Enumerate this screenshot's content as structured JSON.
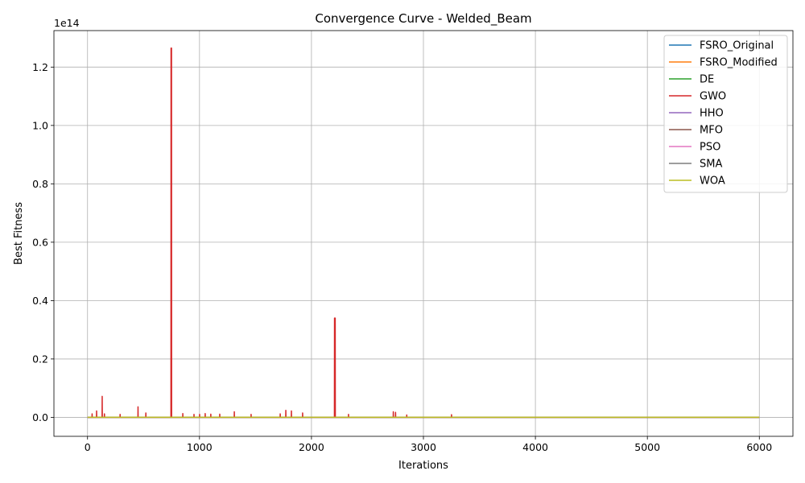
{
  "chart_data": {
    "type": "line",
    "title": "Convergence Curve - Welded_Beam",
    "xlabel": "Iterations",
    "ylabel": "Best Fitness",
    "y_multiplier_label": "1e14",
    "xlim": [
      -300,
      6300
    ],
    "ylim": [
      -0.065,
      1.325
    ],
    "x_ticks": [
      0,
      1000,
      2000,
      3000,
      4000,
      5000,
      6000
    ],
    "x_tick_labels": [
      "0",
      "1000",
      "2000",
      "3000",
      "4000",
      "5000",
      "6000"
    ],
    "y_ticks": [
      0.0,
      0.2,
      0.4,
      0.6,
      0.8,
      1.0,
      1.2
    ],
    "y_tick_labels": [
      "0.0",
      "0.2",
      "0.4",
      "0.6",
      "0.8",
      "1.0",
      "1.2"
    ],
    "grid": true,
    "legend_position": "top-right",
    "series": [
      {
        "name": "FSRO_Original",
        "color": "#1f77b4",
        "x": [
          0,
          6000
        ],
        "y": [
          0.0,
          0.0
        ]
      },
      {
        "name": "FSRO_Modified",
        "color": "#ff7f0e",
        "x": [
          0,
          6000
        ],
        "y": [
          0.0,
          0.0
        ]
      },
      {
        "name": "DE",
        "color": "#2ca02c",
        "x": [
          0,
          6000
        ],
        "y": [
          0.0,
          0.0
        ]
      },
      {
        "name": "GWO",
        "color": "#d62728",
        "x": [
          0,
          40,
          41,
          42,
          80,
          81,
          82,
          130,
          131,
          132,
          150,
          151,
          152,
          290,
          291,
          292,
          450,
          451,
          452,
          520,
          521,
          522,
          740,
          745,
          746,
          750,
          751,
          752,
          850,
          851,
          852,
          950,
          951,
          952,
          1000,
          1001,
          1002,
          1050,
          1051,
          1052,
          1100,
          1101,
          1102,
          1180,
          1181,
          1182,
          1310,
          1311,
          1312,
          1460,
          1461,
          1462,
          1720,
          1721,
          1722,
          1770,
          1771,
          1772,
          1820,
          1821,
          1822,
          1920,
          1921,
          1922,
          2200,
          2205,
          2206,
          2212,
          2213,
          2214,
          2330,
          2331,
          2332,
          2730,
          2731,
          2732,
          2750,
          2751,
          2752,
          2850,
          2851,
          2852,
          3250,
          3251,
          3252,
          6000
        ],
        "y": [
          0.0,
          0.0,
          0.012,
          0.0,
          0.0,
          0.022,
          0.0,
          0.0,
          0.072,
          0.0,
          0.0,
          0.012,
          0.0,
          0.0,
          0.01,
          0.0,
          0.0,
          0.036,
          0.0,
          0.0,
          0.015,
          0.0,
          0.0,
          0.0,
          1.265,
          1.265,
          0.0,
          0.0,
          0.0,
          0.013,
          0.0,
          0.0,
          0.01,
          0.0,
          0.0,
          0.01,
          0.0,
          0.0,
          0.013,
          0.0,
          0.0,
          0.011,
          0.0,
          0.0,
          0.011,
          0.0,
          0.0,
          0.019,
          0.0,
          0.0,
          0.01,
          0.0,
          0.0,
          0.012,
          0.0,
          0.0,
          0.024,
          0.0,
          0.0,
          0.022,
          0.0,
          0.0,
          0.015,
          0.0,
          0.0,
          0.0,
          0.34,
          0.34,
          0.0,
          0.0,
          0.0,
          0.01,
          0.0,
          0.0,
          0.019,
          0.0,
          0.0,
          0.017,
          0.0,
          0.0,
          0.008,
          0.0,
          0.0,
          0.009,
          0.0,
          0.0
        ]
      },
      {
        "name": "HHO",
        "color": "#9467bd",
        "x": [
          0,
          6000
        ],
        "y": [
          0.0,
          0.0
        ]
      },
      {
        "name": "MFO",
        "color": "#8c564b",
        "x": [
          0,
          6000
        ],
        "y": [
          0.0,
          0.0
        ]
      },
      {
        "name": "PSO",
        "color": "#e377c2",
        "x": [
          0,
          6000
        ],
        "y": [
          0.0,
          0.0
        ]
      },
      {
        "name": "SMA",
        "color": "#7f7f7f",
        "x": [
          0,
          6000
        ],
        "y": [
          0.0,
          0.0
        ]
      },
      {
        "name": "WOA",
        "color": "#bcbd22",
        "x": [
          0,
          6000
        ],
        "y": [
          0.0,
          0.0
        ]
      }
    ]
  }
}
